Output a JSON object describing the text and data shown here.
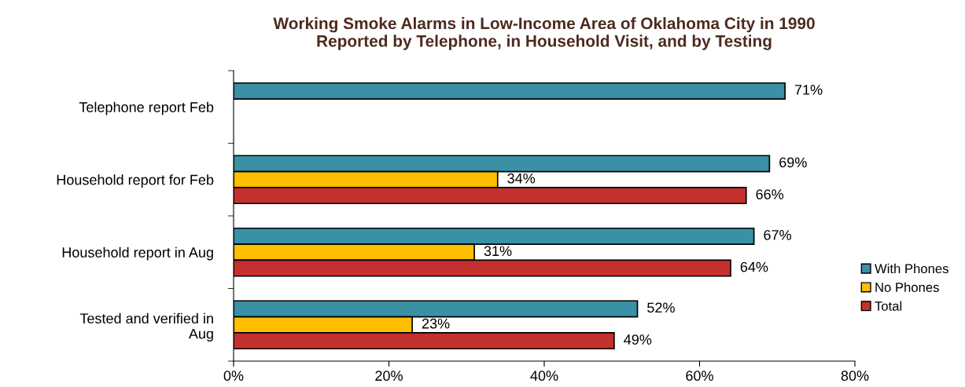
{
  "chart_data": {
    "type": "bar",
    "orientation": "horizontal",
    "title": "Working Smoke Alarms in Low-Income Area of Oklahoma City in 1990\nReported by Telephone, in Household Visit, and by Testing",
    "categories": [
      "Telephone report Feb",
      "Household report for Feb",
      "Household report in Aug",
      "Tested and verified in\nAug"
    ],
    "series": [
      {
        "name": "With Phones",
        "color": "#3a90a5",
        "values": [
          71,
          69,
          67,
          52
        ],
        "value_labels": [
          "71%",
          "69%",
          "67%",
          "52%"
        ]
      },
      {
        "name": "No Phones",
        "color": "#ffbf00",
        "values": [
          null,
          34,
          31,
          23
        ],
        "value_labels": [
          null,
          "34%",
          "31%",
          "23%"
        ]
      },
      {
        "name": "Total",
        "color": "#c4302e",
        "values": [
          null,
          66,
          64,
          49
        ],
        "value_labels": [
          null,
          "66%",
          "64%",
          "49%"
        ]
      }
    ],
    "xlim": [
      0,
      80
    ],
    "xticks": [
      {
        "value": 0,
        "label": "0%"
      },
      {
        "value": 20,
        "label": "20%"
      },
      {
        "value": 40,
        "label": "40%"
      },
      {
        "value": 60,
        "label": "60%"
      },
      {
        "value": 80,
        "label": "80%"
      }
    ],
    "legend": "right",
    "grid": false
  }
}
